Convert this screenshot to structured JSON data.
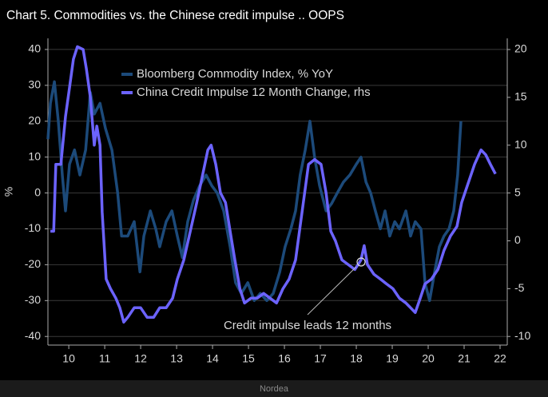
{
  "chart_data": {
    "type": "line",
    "title": "Chart 5. Commodities vs. the Chinese credit impulse .. OOPS",
    "ylabel": "%",
    "source": "Nordea",
    "annotation": "Credit impulse leads 12 months",
    "xlim": [
      2009.92,
      2022.7
    ],
    "ylim": [
      -42.4,
      43.1
    ],
    "y2lim": [
      -10.9,
      21.17
    ],
    "yticks": [
      -40,
      -30,
      -20,
      -10,
      0,
      10,
      20,
      30,
      40
    ],
    "y2ticks": [
      -10,
      -5,
      0,
      5,
      10,
      15,
      20
    ],
    "xticks": [
      {
        "value": 2010.5,
        "label": "10"
      },
      {
        "value": 2011.5,
        "label": "11"
      },
      {
        "value": 2012.5,
        "label": "12"
      },
      {
        "value": 2013.5,
        "label": "13"
      },
      {
        "value": 2014.5,
        "label": "14"
      },
      {
        "value": 2015.5,
        "label": "15"
      },
      {
        "value": 2016.5,
        "label": "16"
      },
      {
        "value": 2017.5,
        "label": "17"
      },
      {
        "value": 2018.5,
        "label": "18"
      },
      {
        "value": 2019.5,
        "label": "19"
      },
      {
        "value": 2020.5,
        "label": "20"
      },
      {
        "value": 2021.5,
        "label": "21"
      },
      {
        "value": 2022.5,
        "label": "22"
      }
    ],
    "grid": true,
    "legend": "top",
    "series": [
      {
        "name": "Bloomberg Commodity Index, % YoY",
        "color": "#1c4a7a",
        "x": [
          2009.92,
          2009.99,
          2010.1,
          2010.21,
          2010.32,
          2010.41,
          2010.52,
          2010.66,
          2010.81,
          2010.97,
          2011.1,
          2011.21,
          2011.37,
          2011.52,
          2011.7,
          2011.86,
          2011.97,
          2012.14,
          2012.32,
          2012.48,
          2012.59,
          2012.77,
          2012.92,
          2013.03,
          2013.21,
          2013.37,
          2013.52,
          2013.66,
          2013.81,
          2013.97,
          2014.14,
          2014.32,
          2014.48,
          2014.63,
          2014.81,
          2014.99,
          2015.14,
          2015.3,
          2015.48,
          2015.66,
          2015.83,
          2016.01,
          2016.19,
          2016.37,
          2016.52,
          2016.68,
          2016.81,
          2016.94,
          2017.08,
          2017.21,
          2017.34,
          2017.48,
          2017.66,
          2017.81,
          2017.97,
          2018.14,
          2018.32,
          2018.5,
          2018.63,
          2018.77,
          2018.9,
          2019.03,
          2019.17,
          2019.3,
          2019.43,
          2019.57,
          2019.7,
          2019.88,
          2020.01,
          2020.14,
          2020.3,
          2020.41,
          2020.54,
          2020.68,
          2020.81,
          2020.94,
          2021.08,
          2021.21,
          2021.32,
          2021.41
        ],
        "values": [
          15,
          25,
          31,
          20,
          5,
          -5,
          8,
          12,
          5,
          12,
          28,
          22,
          25,
          18,
          12,
          0,
          -12,
          -12,
          -8,
          -22,
          -12,
          -5,
          -10,
          -15,
          -8,
          -5,
          -12,
          -18,
          -8,
          -2,
          2,
          5,
          2,
          0,
          -5,
          -15,
          -25,
          -28,
          -25,
          -30,
          -28,
          -30,
          -28,
          -22,
          -15,
          -10,
          -5,
          5,
          12,
          20,
          10,
          2,
          -5,
          -3,
          0,
          3,
          5,
          8,
          10,
          3,
          0,
          -5,
          -10,
          -5,
          -12,
          -8,
          -10,
          -5,
          -12,
          -8,
          -10,
          -25,
          -30,
          -22,
          -15,
          -12,
          -10,
          -5,
          5,
          20
        ]
      },
      {
        "name": "China Credit Impulse 12 Month Change, rhs",
        "color": "#6c63ff",
        "axis": "y2",
        "x": [
          2009.99,
          2010.08,
          2010.14,
          2010.28,
          2010.41,
          2010.52,
          2010.63,
          2010.74,
          2010.9,
          2010.99,
          2011.1,
          2011.21,
          2011.28,
          2011.37,
          2011.43,
          2011.54,
          2011.66,
          2011.81,
          2011.92,
          2012.03,
          2012.14,
          2012.32,
          2012.5,
          2012.68,
          2012.86,
          2013.03,
          2013.21,
          2013.39,
          2013.52,
          2013.7,
          2013.88,
          2014.06,
          2014.23,
          2014.37,
          2014.46,
          2014.59,
          2014.72,
          2014.86,
          2014.99,
          2015.12,
          2015.26,
          2015.39,
          2015.57,
          2015.74,
          2015.92,
          2016.1,
          2016.28,
          2016.46,
          2016.63,
          2016.81,
          2016.99,
          2017.17,
          2017.34,
          2017.52,
          2017.66,
          2017.79,
          2017.92,
          2018.1,
          2018.28,
          2018.46,
          2018.63,
          2018.72,
          2018.81,
          2018.99,
          2019.17,
          2019.34,
          2019.52,
          2019.7,
          2019.88,
          2020.01,
          2020.14,
          2020.28,
          2020.41,
          2020.59,
          2020.77,
          2020.94,
          2021.12,
          2021.3,
          2021.43,
          2021.61,
          2021.79,
          2021.97,
          2022.1,
          2022.23,
          2022.37
        ],
        "values": [
          1,
          1,
          8,
          8,
          13,
          16,
          19,
          20.3,
          20,
          18,
          15,
          10,
          12,
          10,
          3,
          -4,
          -5,
          -6,
          -7,
          -8.5,
          -8,
          -7,
          -7,
          -8,
          -8,
          -7,
          -7,
          -6,
          -4,
          -2,
          1,
          4,
          7,
          9.5,
          10,
          8,
          5,
          4,
          1,
          -2,
          -5,
          -6.5,
          -6,
          -6,
          -5.5,
          -6,
          -6.5,
          -5,
          -4,
          -2,
          3,
          8,
          8.5,
          8,
          5,
          1,
          0,
          -2,
          -2.5,
          -3,
          -2,
          -0.5,
          -2.5,
          -3.5,
          -4,
          -4.5,
          -5,
          -6,
          -6.5,
          -7,
          -7.5,
          -6,
          -4.5,
          -4,
          -3,
          -1,
          0.5,
          1.5,
          4,
          6,
          8,
          9.5,
          9,
          8,
          7
        ]
      }
    ]
  }
}
